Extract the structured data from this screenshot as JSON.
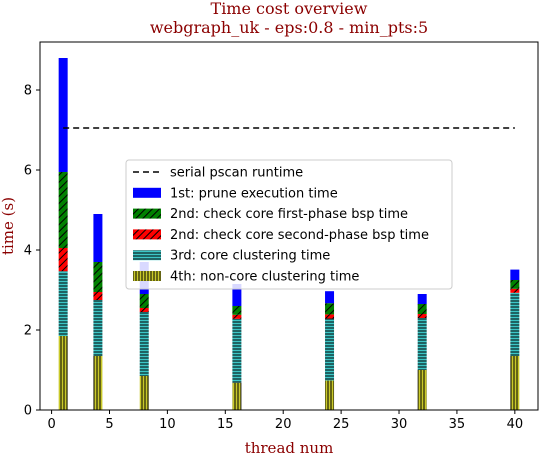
{
  "chart_data": {
    "type": "bar",
    "title": "Time cost overview",
    "subtitle": "webgraph_uk - eps:0.8 - min_pts:5",
    "xlabel": "thread num",
    "ylabel": "time (s)",
    "xlim": [
      -1,
      42
    ],
    "ylim": [
      0,
      9.2
    ],
    "xticks": [
      0,
      5,
      10,
      15,
      20,
      25,
      30,
      35,
      40
    ],
    "yticks": [
      0,
      2,
      4,
      6,
      8
    ],
    "threads": [
      1,
      4,
      8,
      16,
      24,
      32,
      40
    ],
    "serial_runtime": {
      "name": "serial pscan runtime",
      "value": 7.05,
      "x_range": [
        1,
        40
      ]
    },
    "legend_position": "center",
    "series": [
      {
        "name": "4th: non-core clustering time",
        "color": "#c9c92a",
        "hatch": "vertical",
        "values": [
          1.85,
          1.35,
          0.85,
          0.68,
          0.74,
          1.0,
          1.35
        ]
      },
      {
        "name": "3rd: core clustering time",
        "color": "#3cc6c6",
        "hatch": "horizontal",
        "values": [
          1.62,
          1.4,
          1.6,
          1.6,
          1.55,
          1.3,
          1.58
        ]
      },
      {
        "name": "2nd: check core second-phase bsp time",
        "color": "#ff0000",
        "hatch": "diagonal",
        "values": [
          0.58,
          0.2,
          0.1,
          0.1,
          0.1,
          0.1,
          0.1
        ]
      },
      {
        "name": "2nd: check core first-phase bsp time",
        "color": "#008000",
        "hatch": "diagonal",
        "values": [
          1.9,
          0.75,
          0.35,
          0.22,
          0.28,
          0.25,
          0.22
        ]
      },
      {
        "name": "1st: prune execution time",
        "color": "#0000ff",
        "hatch": "none",
        "values": [
          2.85,
          1.2,
          0.8,
          0.55,
          0.3,
          0.25,
          0.26
        ]
      }
    ]
  }
}
